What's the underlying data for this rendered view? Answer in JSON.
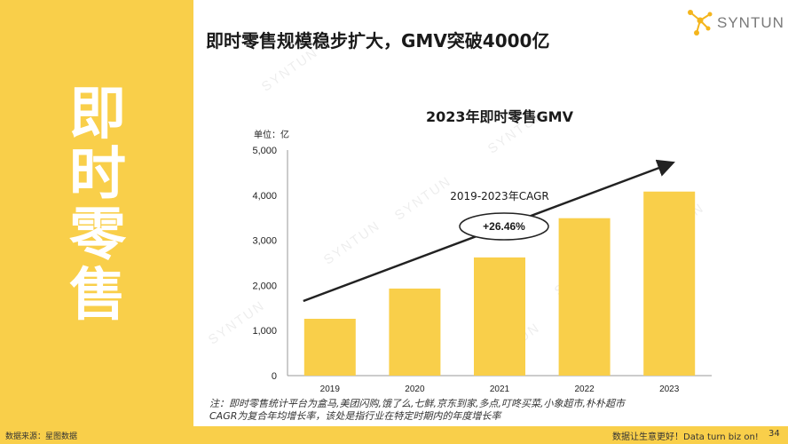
{
  "side_title_chars": [
    "即",
    "时",
    "零",
    "售"
  ],
  "main_title": "即时零售规模稳步扩大，GMV突破4000亿",
  "logo": {
    "text": "SYNTUN"
  },
  "watermark_text": "SYNTUN",
  "chart_data": {
    "type": "bar",
    "title": "2023年即时零售GMV",
    "unit_label": "单位：亿",
    "categories": [
      "2019",
      "2020",
      "2021",
      "2022",
      "2023"
    ],
    "values": [
      1260,
      1930,
      2620,
      3490,
      4080
    ],
    "ylim": [
      0,
      5000
    ],
    "yticks": [
      0,
      1000,
      2000,
      3000,
      4000,
      5000
    ],
    "ytick_labels": [
      "0",
      "1,000",
      "2,000",
      "3,000",
      "4,000",
      "5,000"
    ],
    "bar_color": "#f9cf4a",
    "grid": false,
    "annotation": {
      "label": "2019-2023年CAGR",
      "value": "+26.46%"
    }
  },
  "note_lines": [
    "注：即时零售统计平台为盒马,美团闪购,饿了么,七鲜,京东到家,多点,叮咚买菜,小象超市,朴朴超市",
    "CAGR为复合年均增长率，该处是指行业在特定时期内的年度增长率"
  ],
  "footer": {
    "source": "数据来源：星图数据",
    "slogan": "数据让生意更好！Data turn biz on!",
    "page": "34"
  },
  "colors": {
    "accent": "#f9cf4a",
    "text": "#1a1a1a"
  }
}
